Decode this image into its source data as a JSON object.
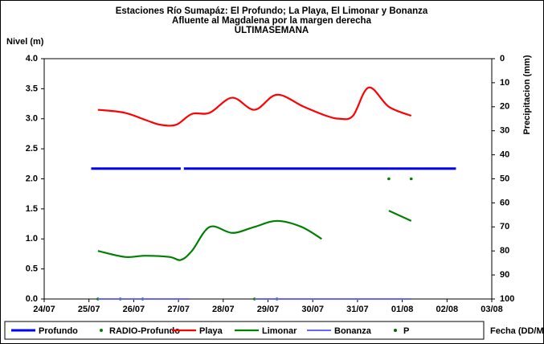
{
  "chart_data": {
    "type": "line",
    "title": [
      "Estaciones Río Sumapáz: El Profundo; La Playa, El Limonar y Bonanza",
      "Afluente al Magdalena por la margen derecha",
      "ULTIMASEMANA"
    ],
    "y_label": "Nivel (m)",
    "y2_label": "Precipitacion (mm)",
    "x_label": "Fecha (DD/M/AA)",
    "xlim": [
      0,
      10
    ],
    "xticks": [
      {
        "value": 0,
        "label": "24/07"
      },
      {
        "value": 1,
        "label": "25/07"
      },
      {
        "value": 2,
        "label": "26/07"
      },
      {
        "value": 3,
        "label": "27/07"
      },
      {
        "value": 4,
        "label": "28/07"
      },
      {
        "value": 5,
        "label": "29/07"
      },
      {
        "value": 6,
        "label": "30/07"
      },
      {
        "value": 7,
        "label": "31/07"
      },
      {
        "value": 8,
        "label": "01/08"
      },
      {
        "value": 9,
        "label": "02/08"
      },
      {
        "value": 10,
        "label": "03/08"
      }
    ],
    "ylim": [
      0,
      4
    ],
    "yticks": [
      {
        "value": 0,
        "label": "0.0"
      },
      {
        "value": 0.5,
        "label": "0.5"
      },
      {
        "value": 1,
        "label": "1.0"
      },
      {
        "value": 1.5,
        "label": "1.5"
      },
      {
        "value": 2,
        "label": "2.0"
      },
      {
        "value": 2.5,
        "label": "2.5"
      },
      {
        "value": 3,
        "label": "3.0"
      },
      {
        "value": 3.5,
        "label": "3.5"
      },
      {
        "value": 4,
        "label": "4.0"
      }
    ],
    "y2lim": [
      100,
      0
    ],
    "y2ticks": [
      0,
      10,
      20,
      30,
      40,
      50,
      60,
      70,
      80,
      90,
      100
    ],
    "series": [
      {
        "name": "Profundo",
        "color": "#0000ff",
        "style": "line",
        "width": 3,
        "x": [
          1.05,
          3.05,
          3.08,
          3.12,
          9.2
        ],
        "values": [
          2.17,
          2.17,
          null,
          2.17,
          2.17
        ]
      },
      {
        "name": "RADIO-Profundo",
        "color": "#008000",
        "style": "dots",
        "x": [
          1.2,
          1.7,
          2.2,
          4.7,
          5.2,
          7.7,
          8.2
        ],
        "values": [
          0,
          0,
          0,
          0,
          0,
          2.0,
          2.0
        ]
      },
      {
        "name": "Playa",
        "color": "#ff0000",
        "style": "line",
        "width": 2.2,
        "x": [
          1.2,
          1.8,
          2.3,
          2.6,
          2.95,
          3.3,
          3.7,
          4.2,
          4.7,
          5.2,
          5.8,
          6.3,
          6.6,
          6.9,
          7.25,
          7.7,
          8.2
        ],
        "values": [
          3.15,
          3.1,
          2.97,
          2.9,
          2.9,
          3.08,
          3.1,
          3.35,
          3.15,
          3.4,
          3.2,
          3.05,
          3.0,
          3.05,
          3.52,
          3.2,
          3.05
        ]
      },
      {
        "name": "Limonar",
        "color": "#008000",
        "style": "line",
        "width": 2.2,
        "x": [
          1.2,
          1.8,
          2.25,
          2.8,
          3.05,
          3.3,
          3.7,
          4.2,
          4.7,
          5.2,
          5.75,
          6.2,
          7.0,
          7.7,
          8.2
        ],
        "values": [
          0.8,
          0.7,
          0.72,
          0.7,
          0.65,
          0.8,
          1.2,
          1.1,
          1.2,
          1.3,
          1.2,
          1.0,
          null,
          1.47,
          1.3
        ]
      },
      {
        "name": "Bonanza",
        "color": "#6666ff",
        "style": "line",
        "width": 2,
        "x": [
          1.2,
          3.25,
          4.0,
          4.7,
          8.2
        ],
        "values": [
          0,
          0,
          null,
          0,
          0
        ]
      },
      {
        "name": "P",
        "color": "#006400",
        "style": "dots",
        "axis": "y2",
        "x": [],
        "values": []
      }
    ]
  }
}
